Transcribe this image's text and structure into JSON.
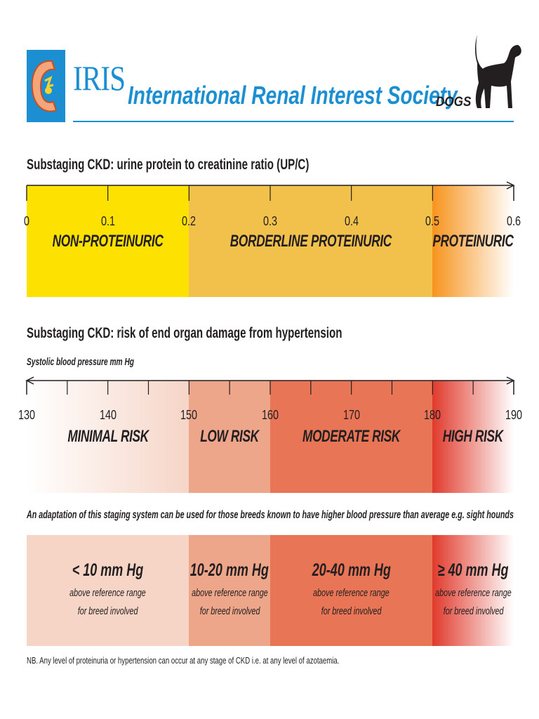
{
  "header": {
    "brand": "IRIS",
    "society": "International Renal Interest Society",
    "species": "DOGS",
    "colors": {
      "brand_blue": "#1b8fd1"
    }
  },
  "proteinuria": {
    "heading": "Substaging CKD: urine protein to creatinine ratio (UP/C)",
    "scale": {
      "min": 0,
      "max": 0.6
    },
    "ticks": [
      "0",
      "0.1",
      "0.2",
      "0.3",
      "0.4",
      "0.5",
      "0.6"
    ],
    "bands": [
      {
        "label": "NON-PROTEINURIC",
        "from": 0,
        "to": 0.2,
        "color": "#fde100"
      },
      {
        "label": "BORDERLINE PROTEINURIC",
        "from": 0.2,
        "to": 0.5,
        "color": "#f2c14b"
      },
      {
        "label": "PROTEINURIC",
        "from": 0.5,
        "to": 0.6,
        "color": "#f7941d"
      }
    ]
  },
  "hypertension": {
    "heading": "Substaging CKD: risk of end organ damage from hypertension",
    "axis_label": "Systolic blood pressure mm Hg",
    "scale": {
      "min": 130,
      "max": 190
    },
    "ticks": [
      "130",
      "140",
      "150",
      "160",
      "170",
      "180",
      "190"
    ],
    "bands": [
      {
        "label": "MINIMAL RISK",
        "from": 130,
        "to": 150,
        "color": "#f6d5c7"
      },
      {
        "label": "LOW RISK",
        "from": 150,
        "to": 160,
        "color": "#eea68a"
      },
      {
        "label": "MODERATE RISK",
        "from": 160,
        "to": 180,
        "color": "#e77556"
      },
      {
        "label": "HIGH  RISK",
        "from": 180,
        "to": 190,
        "color": "#e03a2c"
      }
    ]
  },
  "adaptation": {
    "note": "An adaptation of this staging system can be used for those breeds known to have higher blood pressure than average e.g. sight hounds",
    "bands": [
      {
        "value": "< 10 mm Hg",
        "line1": "above reference range",
        "line2": "for breed involved"
      },
      {
        "value": "10-20 mm Hg",
        "line1": "above reference range",
        "line2": "for breed involved"
      },
      {
        "value": "20-40 mm Hg",
        "line1": "above reference range",
        "line2": "for breed involved"
      },
      {
        "value": "≥ 40 mm Hg",
        "line1": "above reference range",
        "line2": "for breed involved"
      }
    ]
  },
  "footnote": "NB. Any level of proteinuria or hypertension can occur at any stage of CKD i.e. at any level of azotaemia."
}
